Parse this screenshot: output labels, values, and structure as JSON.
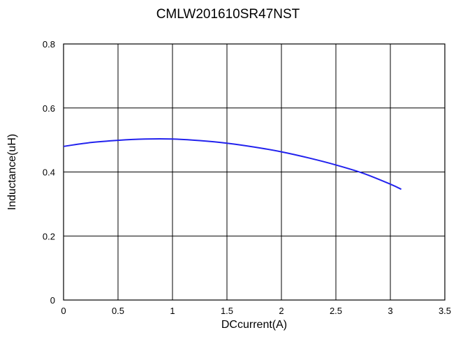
{
  "chart_data": {
    "type": "line",
    "title": "CMLW201610SR47NST",
    "xlabel": "DCcurrent(A)",
    "ylabel": "Inductance(uH)",
    "xlim": [
      0,
      3.5
    ],
    "ylim": [
      0,
      0.8
    ],
    "xticks": [
      0,
      0.5,
      1,
      1.5,
      2,
      2.5,
      3,
      3.5
    ],
    "xtick_labels": [
      "0",
      "0.5",
      "1",
      "1.5",
      "2",
      "2.5",
      "3",
      "3.5"
    ],
    "yticks": [
      0,
      0.2,
      0.4,
      0.6,
      0.8
    ],
    "ytick_labels": [
      "0",
      "0.2",
      "0.4",
      "0.6",
      "0.8"
    ],
    "grid": true,
    "series": [
      {
        "color": "#2222ee",
        "x": [
          0,
          0.25,
          0.5,
          0.75,
          1.0,
          1.25,
          1.5,
          1.75,
          2.0,
          2.25,
          2.5,
          2.75,
          3.0,
          3.1
        ],
        "y": [
          0.48,
          0.492,
          0.499,
          0.503,
          0.503,
          0.498,
          0.49,
          0.478,
          0.463,
          0.444,
          0.422,
          0.396,
          0.362,
          0.346
        ]
      }
    ]
  }
}
